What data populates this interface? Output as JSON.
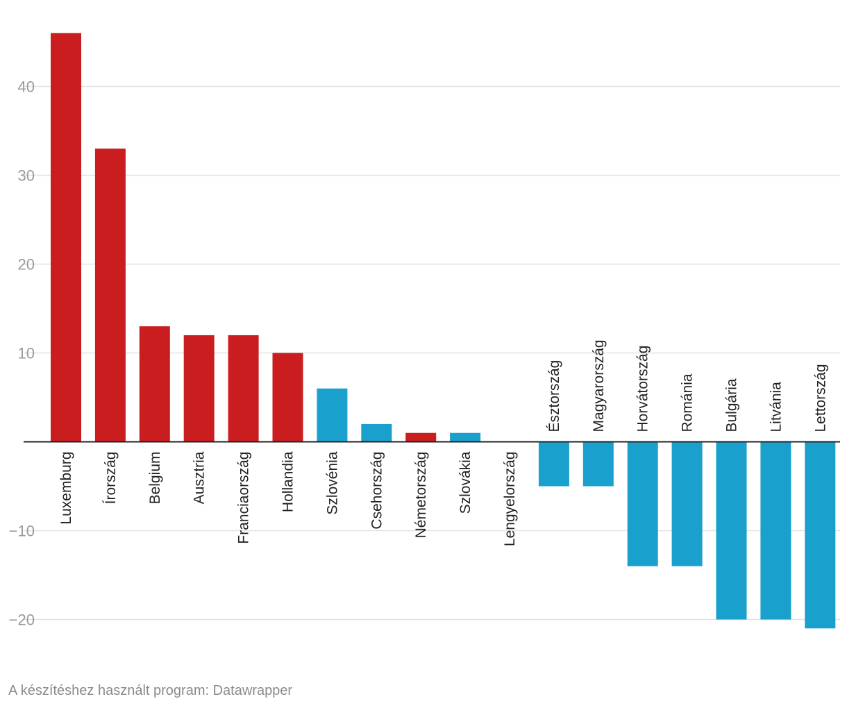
{
  "chart_data": {
    "type": "bar",
    "title": "",
    "xlabel": "",
    "ylabel": "",
    "ylim": [
      -25,
      48
    ],
    "yticks": [
      -20,
      -10,
      10,
      20,
      30,
      40
    ],
    "grid": true,
    "categories": [
      "Luxemburg",
      "Írország",
      "Belgium",
      "Ausztria",
      "Franciaország",
      "Hollandia",
      "Szlovénia",
      "Csehország",
      "Németország",
      "Szlovákia",
      "Lengyelország",
      "Észtország",
      "Magyarország",
      "Horvátország",
      "Románia",
      "Bulgária",
      "Litvánia",
      "Lettország"
    ],
    "values": [
      46,
      33,
      13,
      12,
      12,
      10,
      6,
      2,
      1,
      1,
      0,
      -5,
      -5,
      -14,
      -14,
      -20,
      -20,
      -21
    ],
    "colors": [
      "red",
      "red",
      "red",
      "red",
      "red",
      "red",
      "blue",
      "blue",
      "red",
      "blue",
      "blue",
      "blue",
      "blue",
      "blue",
      "blue",
      "blue",
      "blue",
      "blue"
    ]
  },
  "palette": {
    "red": "#c91d1f",
    "blue": "#1aa0cd"
  },
  "footer": {
    "credit": "A készítéshez használt program: Datawrapper"
  }
}
